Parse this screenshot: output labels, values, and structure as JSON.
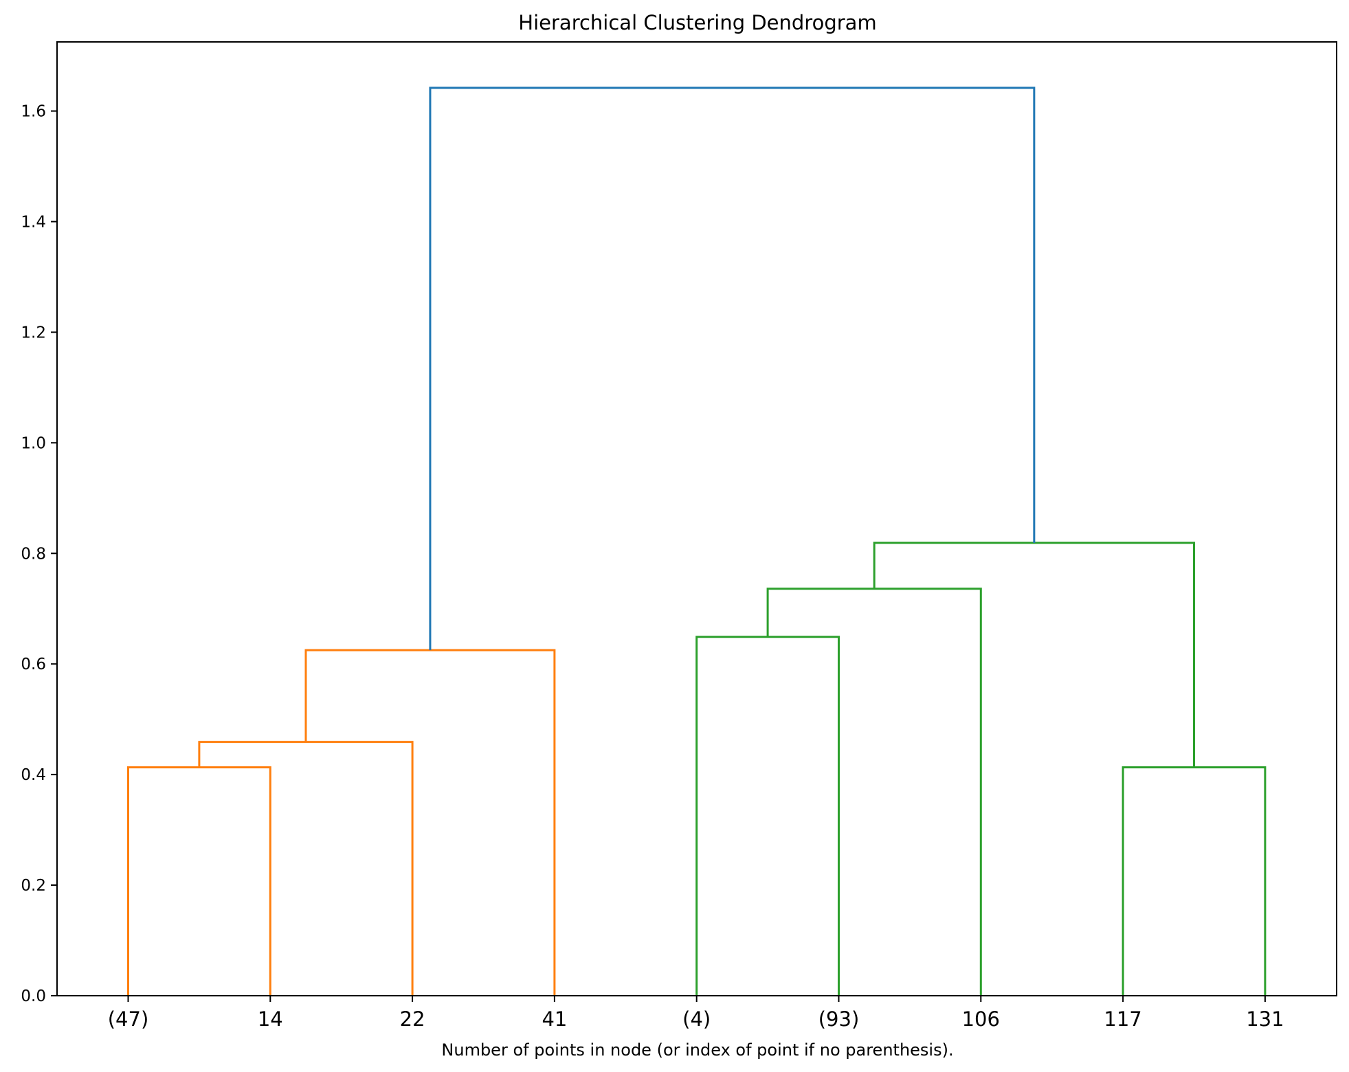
{
  "chart_data": {
    "type": "dendrogram",
    "title": "Hierarchical Clustering Dendrogram",
    "xlabel": "Number of points in node (or index of point if no parenthesis).",
    "ylabel": "",
    "ylim": [
      0,
      1.725
    ],
    "yticks": [
      0.0,
      0.2,
      0.4,
      0.6,
      0.8,
      1.0,
      1.2,
      1.4,
      1.6
    ],
    "ytick_labels": [
      "0.0",
      "0.2",
      "0.4",
      "0.6",
      "0.8",
      "1.0",
      "1.2",
      "1.4",
      "1.6"
    ],
    "leaves": [
      "(47)",
      "14",
      "22",
      "41",
      "(4)",
      "(93)",
      "106",
      "117",
      "131"
    ],
    "grid": false,
    "colors": {
      "cluster_1": "#ff7f0e",
      "cluster_2": "#2ca02c",
      "above_threshold": "#1f77b4"
    },
    "links": [
      {
        "left": 0,
        "right": 1,
        "height": 0.413,
        "color": "#ff7f0e"
      },
      {
        "left": 0.5,
        "right": 2,
        "height": 0.459,
        "color": "#ff7f0e"
      },
      {
        "left": 1.25,
        "right": 3,
        "height": 0.625,
        "color": "#ff7f0e"
      },
      {
        "left": 4,
        "right": 5,
        "height": 0.649,
        "color": "#2ca02c"
      },
      {
        "left": 4.5,
        "right": 6,
        "height": 0.736,
        "color": "#2ca02c"
      },
      {
        "left": 7,
        "right": 8,
        "height": 0.413,
        "color": "#2ca02c"
      },
      {
        "left": 5.25,
        "right": 7.5,
        "height": 0.819,
        "color": "#2ca02c"
      },
      {
        "left": 2.125,
        "right": 6.375,
        "height": 1.642,
        "color": "#1f77b4"
      }
    ]
  }
}
